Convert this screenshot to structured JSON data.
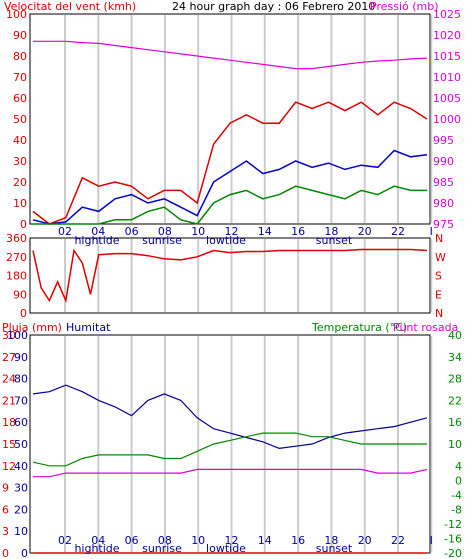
{
  "header": {
    "left_title": "Velocitat del vent (kmh)",
    "center_title": "24 hour graph day : 06 Febrero 2010",
    "right_title": "Pressió (mb)"
  },
  "colors": {
    "wind_gust": "#dd0000",
    "wind_avg": "#0000cc",
    "wind_low": "#008800",
    "pressure": "#dd00dd",
    "direction": "#dd0000",
    "humidity": "#000099",
    "temperature": "#008800",
    "dewpoint": "#dd00dd",
    "rain": "#dd0000",
    "grid": "#cccccc"
  },
  "chart_data": [
    {
      "type": "line",
      "title": "24 hour graph day : 06 Febrero 2010",
      "left_axis_label": "Velocitat del vent (kmh)",
      "right_axis_label": "Pressió (mb)",
      "x_ticks": [
        "02",
        "04",
        "06",
        "08",
        "10",
        "12",
        "14",
        "16",
        "18",
        "20",
        "22",
        "I"
      ],
      "annotations": [
        "hightide",
        "sunrise",
        "lowtide",
        "sunset"
      ],
      "left_ylim": [
        0,
        100
      ],
      "left_ticks": [
        0,
        10,
        20,
        30,
        40,
        50,
        60,
        70,
        80,
        90,
        100
      ],
      "right_ylim": [
        975,
        1025
      ],
      "right_ticks": [
        975,
        980,
        985,
        990,
        995,
        1000,
        1005,
        1010,
        1015,
        1020,
        1025
      ],
      "hours": [
        0,
        1,
        2,
        3,
        4,
        5,
        6,
        7,
        8,
        9,
        10,
        11,
        12,
        13,
        14,
        15,
        16,
        17,
        18,
        19,
        20,
        21,
        22,
        23,
        24
      ],
      "series": [
        {
          "name": "Velocitat del vent (kmh)",
          "axis": "left",
          "style": "gust",
          "values": [
            6,
            0,
            3,
            22,
            18,
            20,
            18,
            12,
            16,
            16,
            10,
            38,
            48,
            52,
            48,
            48,
            58,
            55,
            58,
            54,
            58,
            52,
            58,
            55,
            50
          ]
        },
        {
          "name": "avg",
          "axis": "left",
          "style": "avg",
          "values": [
            2,
            0,
            1,
            8,
            6,
            12,
            14,
            10,
            12,
            8,
            4,
            20,
            25,
            30,
            24,
            26,
            30,
            27,
            29,
            26,
            28,
            27,
            35,
            32,
            33
          ]
        },
        {
          "name": "low",
          "axis": "left",
          "style": "low",
          "values": [
            0,
            0,
            0,
            0,
            0,
            2,
            2,
            6,
            8,
            2,
            0,
            10,
            14,
            16,
            12,
            14,
            18,
            16,
            14,
            12,
            16,
            14,
            18,
            16,
            16
          ]
        },
        {
          "name": "Pressió (mb)",
          "axis": "right",
          "values": [
            1018.5,
            1018.5,
            1018.5,
            1018.2,
            1018.0,
            1017.5,
            1017.0,
            1016.5,
            1016.0,
            1015.5,
            1015.0,
            1014.5,
            1014.0,
            1013.5,
            1013.0,
            1012.5,
            1012.0,
            1012.0,
            1012.5,
            1013.0,
            1013.5,
            1013.8,
            1014.0,
            1014.3,
            1014.5
          ]
        }
      ]
    },
    {
      "type": "line",
      "ylim": [
        0,
        360
      ],
      "left_ticks": [
        0,
        90,
        180,
        270,
        360
      ],
      "right_labels": [
        "N",
        "W",
        "S",
        "E",
        "N"
      ],
      "hours": [
        0,
        0.5,
        1,
        1.5,
        2,
        2.5,
        3,
        3.5,
        4,
        5,
        6,
        7,
        8,
        9,
        10,
        11,
        12,
        13,
        14,
        15,
        16,
        17,
        18,
        19,
        20,
        21,
        22,
        23,
        24
      ],
      "series": [
        {
          "name": "direction",
          "values": [
            300,
            120,
            60,
            150,
            60,
            300,
            240,
            90,
            280,
            285,
            285,
            275,
            260,
            255,
            270,
            300,
            290,
            295,
            295,
            300,
            300,
            300,
            300,
            300,
            305,
            305,
            305,
            305,
            300
          ]
        }
      ]
    },
    {
      "type": "line",
      "labels": {
        "rain": "Pluja (mm)",
        "humidity": "Humitat",
        "temperature": "Temperatura (°C)",
        "dewpoint": "Punt rosada"
      },
      "humidity_ticks": [
        0,
        10,
        20,
        30,
        40,
        50,
        60,
        70,
        80,
        90,
        100
      ],
      "rain_ticks": [
        0,
        3,
        6,
        9,
        12,
        15,
        18,
        21,
        24,
        27,
        30
      ],
      "temp_ticks": [
        -20,
        -16,
        -12,
        -8,
        -4,
        0,
        4,
        10,
        16,
        22,
        28,
        34,
        40
      ],
      "temp_ylim": [
        -20,
        40
      ],
      "x_ticks": [
        "02",
        "04",
        "06",
        "08",
        "10",
        "12",
        "14",
        "16",
        "18",
        "20",
        "22",
        "I"
      ],
      "annotations": [
        "hightide",
        "sunrise",
        "lowtide",
        "sunset"
      ],
      "hours": [
        0,
        1,
        2,
        3,
        4,
        5,
        6,
        7,
        8,
        9,
        10,
        11,
        12,
        13,
        14,
        15,
        16,
        17,
        18,
        19,
        20,
        21,
        22,
        23,
        24
      ],
      "series": [
        {
          "name": "Humitat",
          "axis": "humidity",
          "values": [
            73,
            74,
            77,
            74,
            70,
            67,
            63,
            70,
            73,
            70,
            62,
            57,
            55,
            53,
            51,
            48,
            49,
            50,
            53,
            55,
            56,
            57,
            58,
            60,
            62
          ]
        },
        {
          "name": "Temperatura (°C)",
          "axis": "temp",
          "values": [
            5,
            4,
            4,
            6,
            7,
            7,
            7,
            7,
            6,
            6,
            8,
            10,
            11,
            12,
            13,
            13,
            13,
            12,
            12,
            11,
            10,
            10,
            10,
            10,
            10
          ]
        },
        {
          "name": "Punt rosada",
          "axis": "temp",
          "values": [
            1,
            1,
            2,
            2,
            2,
            2,
            2,
            2,
            2,
            2,
            3,
            3,
            3,
            3,
            3,
            3,
            3,
            3,
            3,
            3,
            3,
            2,
            2,
            2,
            3
          ]
        },
        {
          "name": "Pluja (mm)",
          "axis": "rain",
          "values": [
            0,
            0,
            0,
            0,
            0,
            0,
            0,
            0,
            0,
            0,
            0,
            0,
            0,
            0,
            0,
            0,
            0,
            0,
            0,
            0,
            0,
            0,
            0,
            0,
            0
          ]
        }
      ]
    }
  ]
}
